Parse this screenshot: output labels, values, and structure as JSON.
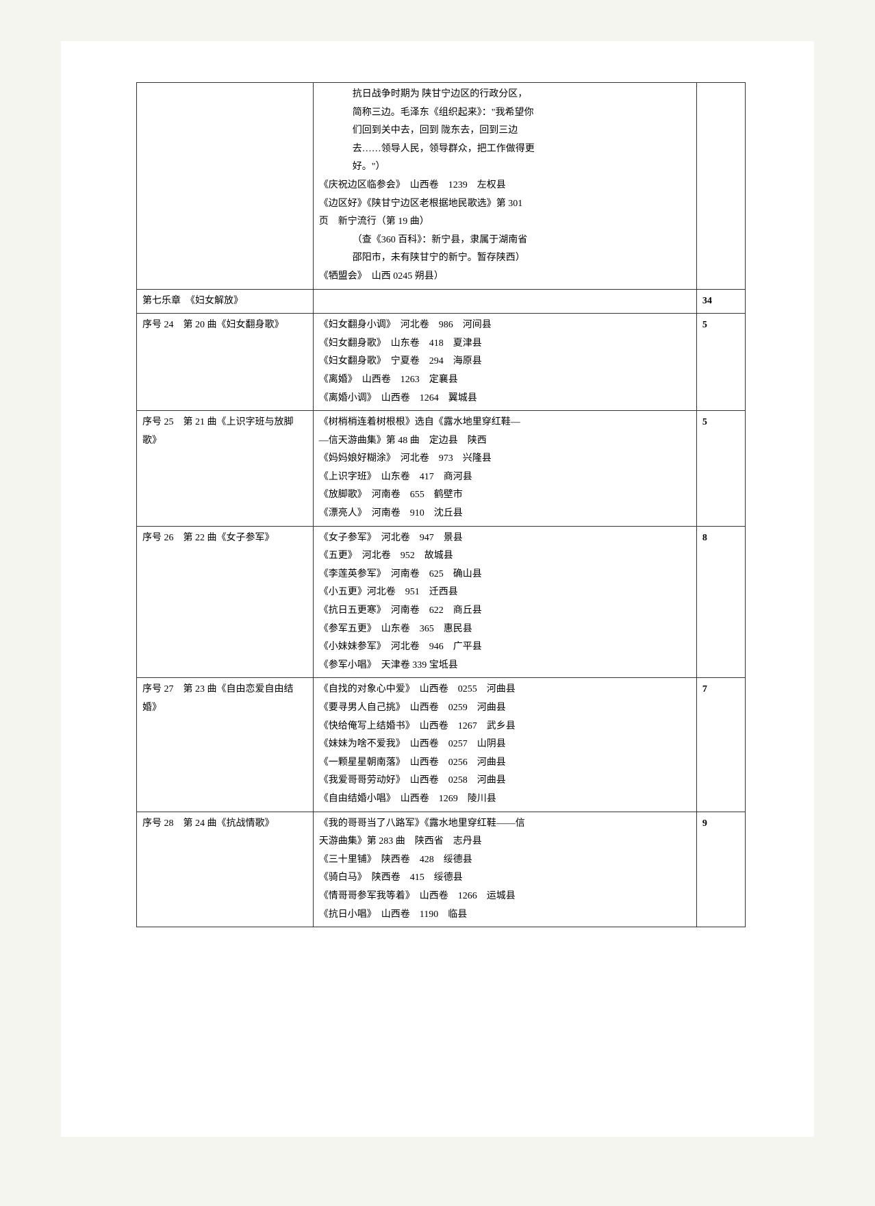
{
  "rows": [
    {
      "left": "",
      "mid": [
        {
          "cls": "indent",
          "text": "抗日战争时期为 陕甘宁边区的行政分区，"
        },
        {
          "cls": "indent",
          "text": "简称三边。毛泽东《组织起来》：\"我希望你"
        },
        {
          "cls": "indent",
          "text": "们回到关中去，回到 陇东去，回到三边"
        },
        {
          "cls": "indent",
          "text": "去……领导人民，领导群众，把工作做得更"
        },
        {
          "cls": "indent",
          "text": "好。\"）"
        },
        {
          "cls": "",
          "text": "《庆祝边区临参会》　山西卷　1239　左权县"
        },
        {
          "cls": "",
          "text": "《边区好》《陕甘宁边区老根据地民歌选》第 301"
        },
        {
          "cls": "",
          "text": "页　新宁流行（第 19 曲）"
        },
        {
          "cls": "indent",
          "text": "（查《360 百科》：新宁县，隶属于湖南省"
        },
        {
          "cls": "indent",
          "text": "邵阳市，未有陕甘宁的新宁。暂存陕西）"
        },
        {
          "cls": "",
          "text": "《牺盟会》　山西 0245 朔县）"
        }
      ],
      "right": ""
    },
    {
      "chapter": true,
      "left": "第七乐章　《妇女解放》",
      "mid": [],
      "right": "34"
    },
    {
      "left": "序号 24　第 20 曲《妇女翻身歌》",
      "mid": [
        {
          "cls": "",
          "text": "《妇女翻身小调》　河北卷　986　河间县"
        },
        {
          "cls": "",
          "text": "《妇女翻身歌》　山东卷　418　夏津县"
        },
        {
          "cls": "",
          "text": "《妇女翻身歌》　宁夏卷　294　海原县"
        },
        {
          "cls": "",
          "text": "《离婚》　山西卷　1263　定襄县"
        },
        {
          "cls": "",
          "text": "《离婚小调》　山西卷　1264　翼城县"
        }
      ],
      "right": "5"
    },
    {
      "left": "序号 25　第 21 曲《上识字班与放脚歌》",
      "mid": [
        {
          "cls": "",
          "text": "《树梢梢连着树根根》选自《露水地里穿红鞋—"
        },
        {
          "cls": "",
          "text": "—信天游曲集》第 48 曲　定边县　陕西"
        },
        {
          "cls": "",
          "text": "《妈妈娘好糊涂》　河北卷　973　兴隆县"
        },
        {
          "cls": "",
          "text": "《上识字班》　山东卷　417　商河县"
        },
        {
          "cls": "",
          "text": "《放脚歌》　河南卷　655　鹤壁市"
        },
        {
          "cls": "",
          "text": "《漂亮人》　河南卷　910　沈丘县"
        }
      ],
      "right": "5"
    },
    {
      "left": "序号 26　第 22 曲《女子参军》",
      "mid": [
        {
          "cls": "",
          "text": "《女子参军》　河北卷　947　景县"
        },
        {
          "cls": "",
          "text": "《五更》　河北卷　952　故城县"
        },
        {
          "cls": "",
          "text": "《李莲英参军》　河南卷　625　确山县"
        },
        {
          "cls": "",
          "text": "《小五更》河北卷　951　迁西县"
        },
        {
          "cls": "",
          "text": "《抗日五更寒》　河南卷　622　商丘县"
        },
        {
          "cls": "",
          "text": "《参军五更》　山东卷　365　惠民县"
        },
        {
          "cls": "",
          "text": "《小妹妹参军》　河北卷　946　广平县"
        },
        {
          "cls": "",
          "text": "《参军小唱》　天津卷 339 宝坻县"
        }
      ],
      "right": "8"
    },
    {
      "left": "序号 27　第 23 曲《自由恋爱自由结婚》",
      "mid": [
        {
          "cls": "",
          "text": "《自找的对象心中爱》　山西卷　0255　河曲县"
        },
        {
          "cls": "",
          "text": "《要寻男人自己挑》　山西卷　0259　河曲县"
        },
        {
          "cls": "",
          "text": "《快给俺写上结婚书》　山西卷　1267　武乡县"
        },
        {
          "cls": "",
          "text": "《妹妹为啥不爱我》　山西卷　0257　山阴县"
        },
        {
          "cls": "",
          "text": "《一颗星星朝南落》　山西卷　0256　河曲县"
        },
        {
          "cls": "",
          "text": "《我爱哥哥劳动好》　山西卷　0258　河曲县"
        },
        {
          "cls": "",
          "text": "《自由结婚小唱》　山西卷　1269　陵川县"
        }
      ],
      "right": "7"
    },
    {
      "left": "序号 28　第 24 曲《抗战情歌》",
      "mid": [
        {
          "cls": "",
          "text": "《我的哥哥当了八路军》《露水地里穿红鞋——信"
        },
        {
          "cls": "",
          "text": "天游曲集》第 283 曲　陕西省　志丹县"
        },
        {
          "cls": "",
          "text": "《三十里铺》　陕西卷　428　绥德县"
        },
        {
          "cls": "",
          "text": "《骑白马》　陕西卷　415　绥德县"
        },
        {
          "cls": "",
          "text": "《情哥哥参军我等着》　山西卷　1266　运城县"
        },
        {
          "cls": "",
          "text": "《抗日小唱》　山西卷　1190　临县"
        }
      ],
      "right": "9"
    }
  ]
}
